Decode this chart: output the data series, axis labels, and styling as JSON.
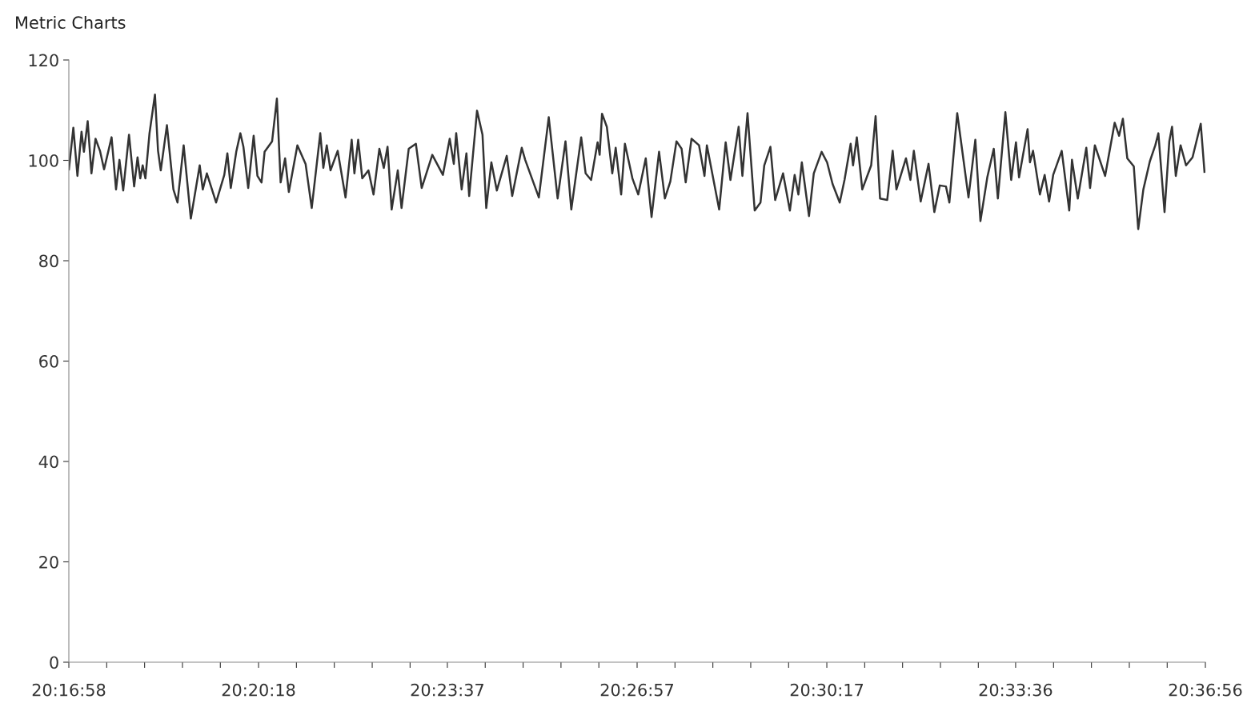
{
  "chart_data": {
    "type": "line",
    "title": "Metric Charts",
    "x": [
      20.2828,
      20.2841,
      20.2853,
      20.2865,
      20.2872,
      20.2883,
      20.2894,
      20.2906,
      20.2919,
      20.2931,
      20.2953,
      20.2966,
      20.2976,
      20.2987,
      20.3004,
      20.3019,
      20.3029,
      20.3037,
      20.3044,
      20.3052,
      20.3064,
      20.308,
      20.3089,
      20.3097,
      20.3115,
      20.3134,
      20.3146,
      20.3164,
      20.3185,
      20.3211,
      20.322,
      20.3232,
      20.3259,
      20.3283,
      20.3292,
      20.3302,
      20.3318,
      20.333,
      20.3339,
      20.3353,
      20.3369,
      20.338,
      20.3392,
      20.3401,
      20.3423,
      20.3437,
      20.3448,
      20.3461,
      20.3472,
      20.3497,
      20.3521,
      20.3539,
      20.3564,
      20.3573,
      20.3583,
      20.3594,
      20.3615,
      20.3638,
      20.3656,
      20.3664,
      20.3675,
      20.3687,
      20.3705,
      20.372,
      20.3737,
      20.375,
      20.3761,
      20.3773,
      20.3791,
      20.3802,
      20.3823,
      20.3844,
      20.3861,
      20.3892,
      20.3923,
      20.3943,
      20.3955,
      20.3962,
      20.3978,
      20.3992,
      20.4,
      20.4023,
      20.4039,
      20.405,
      20.4065,
      20.4081,
      20.411,
      20.4126,
      20.4154,
      20.4164,
      20.4204,
      20.4233,
      20.4259,
      20.4282,
      20.4299,
      20.4328,
      20.4341,
      20.4357,
      20.4376,
      20.4382,
      20.4389,
      20.4403,
      20.4419,
      20.4429,
      20.4445,
      20.4456,
      20.4478,
      20.4495,
      20.4517,
      20.4534,
      20.4556,
      20.4573,
      20.4589,
      20.4607,
      20.4622,
      20.4634,
      20.4651,
      20.4673,
      20.4689,
      20.4696,
      20.4732,
      20.4751,
      20.4765,
      20.4789,
      20.48,
      20.4815,
      20.4836,
      20.4853,
      20.4864,
      20.4882,
      20.4896,
      20.4919,
      20.4939,
      20.4953,
      20.4964,
      20.4974,
      20.4995,
      20.5009,
      20.5032,
      20.5048,
      20.5064,
      20.5085,
      20.5099,
      20.5117,
      20.5124,
      20.5135,
      20.5151,
      20.5177,
      20.519,
      20.5203,
      20.5224,
      20.524,
      20.5251,
      20.5279,
      20.5292,
      20.5302,
      20.5322,
      20.5345,
      20.5362,
      20.5378,
      20.5396,
      20.5406,
      20.5429,
      20.5462,
      20.5482,
      20.5497,
      20.5517,
      20.5536,
      20.5548,
      20.557,
      20.5587,
      20.5601,
      20.561,
      20.5635,
      20.5642,
      20.5651,
      20.5671,
      20.5685,
      20.5698,
      20.571,
      20.5735,
      20.5757,
      20.5765,
      20.5782,
      20.5807,
      20.5818,
      20.5832,
      20.5862,
      20.589,
      20.5903,
      20.5914,
      20.5927,
      20.5946,
      20.5959,
      20.5974,
      20.5993,
      20.6009,
      20.6018,
      20.6036,
      20.605,
      20.6058,
      20.6069,
      20.6083,
      20.6099,
      20.6118,
      20.6142,
      20.6153
    ],
    "series": [
      {
        "color": "#333333",
        "values": [
          98.2,
          106.5,
          96.9,
          105.7,
          101.7,
          107.8,
          97.4,
          104.3,
          101.9,
          98.2,
          104.6,
          94.2,
          100.1,
          94.0,
          105.1,
          94.8,
          100.6,
          96.4,
          99.0,
          96.4,
          105.4,
          113.1,
          101.9,
          98.0,
          107.0,
          94.2,
          91.6,
          103.0,
          88.4,
          99.0,
          94.2,
          97.4,
          91.6,
          97.1,
          101.4,
          94.5,
          101.7,
          105.4,
          102.7,
          94.5,
          104.9,
          96.9,
          95.6,
          101.7,
          103.8,
          112.3,
          95.6,
          100.4,
          93.7,
          103.0,
          99.3,
          90.5,
          105.4,
          98.5,
          103.0,
          98.0,
          101.9,
          92.6,
          104.1,
          97.4,
          104.1,
          96.4,
          98.0,
          93.2,
          102.3,
          98.5,
          102.7,
          90.2,
          98.0,
          90.5,
          102.3,
          103.3,
          94.5,
          101.1,
          97.1,
          104.3,
          99.3,
          105.4,
          94.2,
          101.4,
          92.9,
          109.9,
          105.1,
          90.5,
          99.6,
          94.0,
          100.9,
          92.9,
          102.5,
          100.1,
          92.6,
          108.6,
          92.4,
          103.8,
          90.2,
          104.6,
          97.4,
          96.1,
          103.6,
          101.1,
          109.3,
          106.7,
          97.4,
          102.5,
          93.2,
          103.3,
          96.4,
          93.2,
          100.4,
          88.7,
          101.7,
          92.4,
          95.8,
          103.8,
          102.3,
          95.6,
          104.3,
          103.0,
          96.9,
          103.0,
          90.2,
          103.6,
          96.1,
          106.7,
          96.9,
          109.4,
          90.0,
          91.6,
          99.0,
          102.7,
          92.1,
          97.4,
          90.0,
          97.1,
          93.2,
          99.6,
          88.9,
          97.4,
          101.7,
          99.6,
          95.3,
          91.6,
          96.1,
          103.3,
          99.0,
          104.6,
          94.2,
          99.0,
          108.8,
          92.4,
          92.1,
          101.9,
          94.2,
          100.4,
          96.1,
          101.9,
          91.8,
          99.3,
          89.7,
          95.0,
          94.8,
          91.6,
          109.4,
          92.6,
          104.1,
          87.9,
          96.6,
          102.3,
          92.4,
          109.6,
          96.1,
          103.6,
          96.6,
          106.2,
          99.6,
          101.9,
          93.2,
          97.1,
          91.8,
          97.1,
          101.9,
          90.0,
          100.1,
          92.4,
          102.5,
          94.5,
          103.0,
          96.9,
          107.5,
          104.9,
          108.3,
          100.4,
          98.8,
          86.3,
          94.2,
          99.8,
          103.0,
          105.4,
          89.7,
          103.8,
          106.7,
          96.9,
          103.0,
          99.0,
          100.6,
          107.3,
          97.7
        ]
      }
    ],
    "xlim": [
      20.28278,
      20.61556
    ],
    "xticks": [
      {
        "value": 20.28278,
        "label": "20:16:58"
      },
      {
        "value": 20.29387,
        "label": null
      },
      {
        "value": 20.30496,
        "label": null
      },
      {
        "value": 20.31605,
        "label": null
      },
      {
        "value": 20.32714,
        "label": null
      },
      {
        "value": 20.33833,
        "label": "20:20:18"
      },
      {
        "value": 20.34942,
        "label": null
      },
      {
        "value": 20.36051,
        "label": null
      },
      {
        "value": 20.37161,
        "label": null
      },
      {
        "value": 20.3827,
        "label": null
      },
      {
        "value": 20.39361,
        "label": "20:23:37"
      },
      {
        "value": 20.4047,
        "label": null
      },
      {
        "value": 20.41579,
        "label": null
      },
      {
        "value": 20.42688,
        "label": null
      },
      {
        "value": 20.43797,
        "label": null
      },
      {
        "value": 20.44917,
        "label": "20:26:57"
      },
      {
        "value": 20.46026,
        "label": null
      },
      {
        "value": 20.47135,
        "label": null
      },
      {
        "value": 20.48244,
        "label": null
      },
      {
        "value": 20.49353,
        "label": null
      },
      {
        "value": 20.50472,
        "label": "20:30:17"
      },
      {
        "value": 20.51581,
        "label": null
      },
      {
        "value": 20.5269,
        "label": null
      },
      {
        "value": 20.53799,
        "label": null
      },
      {
        "value": 20.54908,
        "label": null
      },
      {
        "value": 20.56,
        "label": "20:33:36"
      },
      {
        "value": 20.57111,
        "label": null
      },
      {
        "value": 20.5822,
        "label": null
      },
      {
        "value": 20.59329,
        "label": null
      },
      {
        "value": 20.60438,
        "label": null
      },
      {
        "value": 20.61556,
        "label": "20:36:56"
      }
    ],
    "ylim": [
      0,
      120
    ],
    "yticks": [
      0,
      20,
      40,
      60,
      80,
      100,
      120
    ],
    "marker": "none",
    "line_style": "solid"
  }
}
